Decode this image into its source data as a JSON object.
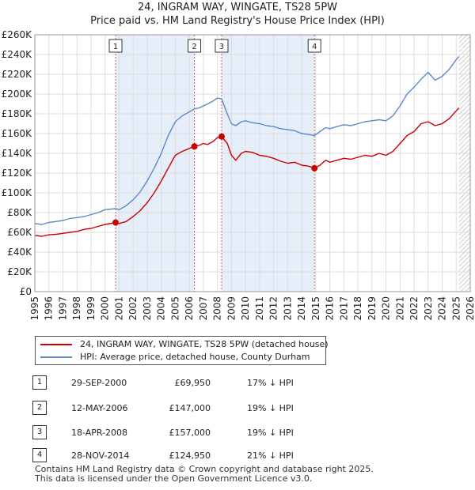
{
  "title": "24, INGRAM WAY, WINGATE, TS28 5PW",
  "subtitle": "Price paid vs. HM Land Registry's House Price Index (HPI)",
  "chart_data": {
    "type": "line",
    "xlim": [
      1995,
      2026
    ],
    "ylim": [
      0,
      260000
    ],
    "x_ticks": [
      1995,
      1996,
      1997,
      1998,
      1999,
      2000,
      2001,
      2002,
      2003,
      2004,
      2005,
      2006,
      2007,
      2008,
      2009,
      2010,
      2011,
      2012,
      2013,
      2014,
      2015,
      2016,
      2017,
      2018,
      2019,
      2020,
      2021,
      2022,
      2023,
      2024,
      2025,
      2026
    ],
    "y_ticks": [
      {
        "value": 0,
        "label": "£0"
      },
      {
        "value": 20000,
        "label": "£20K"
      },
      {
        "value": 40000,
        "label": "£40K"
      },
      {
        "value": 60000,
        "label": "£60K"
      },
      {
        "value": 80000,
        "label": "£80K"
      },
      {
        "value": 100000,
        "label": "£100K"
      },
      {
        "value": 120000,
        "label": "£120K"
      },
      {
        "value": 140000,
        "label": "£140K"
      },
      {
        "value": 160000,
        "label": "£160K"
      },
      {
        "value": 180000,
        "label": "£180K"
      },
      {
        "value": 200000,
        "label": "£200K"
      },
      {
        "value": 220000,
        "label": "£220K"
      },
      {
        "value": 240000,
        "label": "£240K"
      },
      {
        "value": 260000,
        "label": "£260K"
      }
    ],
    "grid": true,
    "shaded_periods": [
      [
        2000.75,
        2006.36
      ],
      [
        2008.3,
        2014.91
      ]
    ],
    "hatched_from": 2025.2,
    "series": [
      {
        "name": "24, INGRAM WAY, WINGATE, TS28 5PW (detached house)",
        "color": "#cc0000",
        "x": [
          1995,
          1995.5,
          1996,
          1996.5,
          1997,
          1997.5,
          1998,
          1998.5,
          1999,
          1999.5,
          2000,
          2000.75,
          2001,
          2001.5,
          2002,
          2002.5,
          2003,
          2003.5,
          2004,
          2004.5,
          2005,
          2005.5,
          2006,
          2006.36,
          2006.7,
          2007,
          2007.3,
          2007.7,
          2008,
          2008.3,
          2008.7,
          2009,
          2009.3,
          2009.7,
          2010,
          2010.5,
          2011,
          2011.5,
          2012,
          2012.5,
          2013,
          2013.5,
          2014,
          2014.5,
          2014.91,
          2015.3,
          2015.7,
          2016,
          2016.5,
          2017,
          2017.5,
          2018,
          2018.5,
          2019,
          2019.5,
          2020,
          2020.5,
          2021,
          2021.5,
          2022,
          2022.5,
          2023,
          2023.5,
          2024,
          2024.5,
          2025,
          2025.2
        ],
        "y": [
          57000,
          56000,
          57500,
          58000,
          59000,
          60000,
          61000,
          63000,
          64000,
          66000,
          68000,
          69950,
          69000,
          71000,
          76000,
          82000,
          90000,
          100000,
          112000,
          125000,
          138000,
          142000,
          145000,
          147000,
          148000,
          150000,
          149000,
          152000,
          156000,
          157000,
          150000,
          138000,
          133000,
          140000,
          142000,
          141000,
          138000,
          137000,
          135000,
          132000,
          130000,
          131000,
          128000,
          127000,
          124950,
          128000,
          133000,
          131000,
          133000,
          135000,
          134000,
          136000,
          138000,
          137000,
          140000,
          138000,
          142000,
          150000,
          158000,
          162000,
          170000,
          172000,
          168000,
          170000,
          175000,
          183000,
          186000
        ]
      },
      {
        "name": "HPI: Average price, detached house, County Durham",
        "color": "#5b8ac8",
        "x": [
          1995,
          1995.5,
          1996,
          1996.5,
          1997,
          1997.5,
          1998,
          1998.5,
          1999,
          1999.5,
          2000,
          2000.75,
          2001,
          2001.5,
          2002,
          2002.5,
          2003,
          2003.5,
          2004,
          2004.5,
          2005,
          2005.5,
          2006,
          2006.36,
          2006.7,
          2007,
          2007.3,
          2007.7,
          2008,
          2008.3,
          2008.7,
          2009,
          2009.3,
          2009.7,
          2010,
          2010.5,
          2011,
          2011.5,
          2012,
          2012.5,
          2013,
          2013.5,
          2014,
          2014.5,
          2014.91,
          2015.3,
          2015.7,
          2016,
          2016.5,
          2017,
          2017.5,
          2018,
          2018.5,
          2019,
          2019.5,
          2020,
          2020.5,
          2021,
          2021.5,
          2022,
          2022.5,
          2023,
          2023.5,
          2024,
          2024.5,
          2025,
          2025.2
        ],
        "y": [
          69000,
          68000,
          70000,
          71000,
          72000,
          74000,
          75000,
          76000,
          78000,
          80000,
          83000,
          84000,
          83000,
          87000,
          93000,
          101000,
          112000,
          125000,
          140000,
          158000,
          172000,
          178000,
          182000,
          185000,
          186000,
          188000,
          190000,
          193000,
          196000,
          195000,
          180000,
          170000,
          168000,
          172000,
          173000,
          171000,
          170000,
          168000,
          167000,
          165000,
          164000,
          163000,
          160000,
          159000,
          158000,
          162000,
          166000,
          165000,
          167000,
          169000,
          168000,
          170000,
          172000,
          173000,
          174000,
          173000,
          178000,
          188000,
          200000,
          207000,
          215000,
          222000,
          214000,
          218000,
          225000,
          235000,
          238000
        ]
      }
    ],
    "markers": [
      {
        "n": "1",
        "x": 2000.75,
        "y": 69950
      },
      {
        "n": "2",
        "x": 2006.36,
        "y": 147000
      },
      {
        "n": "3",
        "x": 2008.3,
        "y": 157000
      },
      {
        "n": "4",
        "x": 2014.91,
        "y": 124950
      }
    ]
  },
  "legend": {
    "items": [
      {
        "label": "24, INGRAM WAY, WINGATE, TS28 5PW (detached house)",
        "color": "#cc0000"
      },
      {
        "label": "HPI: Average price, detached house, County Durham",
        "color": "#5b8ac8"
      }
    ]
  },
  "transactions": [
    {
      "n": "1",
      "date": "29-SEP-2000",
      "price": "£69,950",
      "delta": "17% ↓ HPI"
    },
    {
      "n": "2",
      "date": "12-MAY-2006",
      "price": "£147,000",
      "delta": "19% ↓ HPI"
    },
    {
      "n": "3",
      "date": "18-APR-2008",
      "price": "£157,000",
      "delta": "19% ↓ HPI"
    },
    {
      "n": "4",
      "date": "28-NOV-2014",
      "price": "£124,950",
      "delta": "21% ↓ HPI"
    }
  ],
  "footer": {
    "line1": "Contains HM Land Registry data © Crown copyright and database right 2025.",
    "line2": "This data is licensed under the Open Government Licence v3.0."
  }
}
